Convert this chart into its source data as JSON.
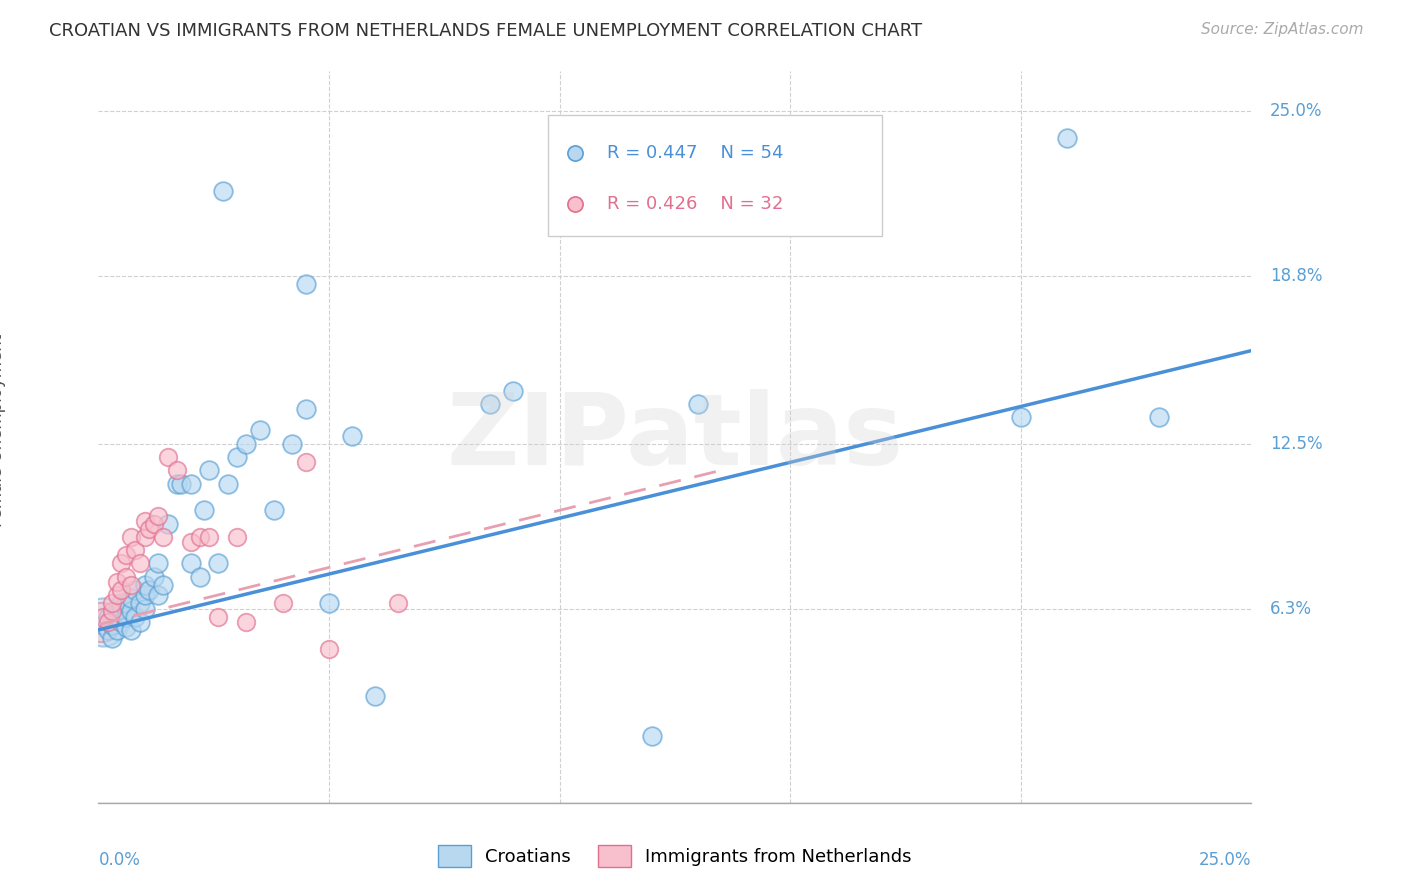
{
  "title": "CROATIAN VS IMMIGRANTS FROM NETHERLANDS FEMALE UNEMPLOYMENT CORRELATION CHART",
  "source": "Source: ZipAtlas.com",
  "ylabel": "Female Unemployment",
  "ytick_labels": [
    "6.3%",
    "12.5%",
    "18.8%",
    "25.0%"
  ],
  "ytick_values": [
    0.063,
    0.125,
    0.188,
    0.25
  ],
  "xlim": [
    0.0,
    0.25
  ],
  "ylim": [
    -0.01,
    0.265
  ],
  "blue_color": "#b8d8f0",
  "pink_color": "#f8bfcc",
  "blue_edge_color": "#5a9fd4",
  "pink_edge_color": "#e07090",
  "blue_line_color": "#4a90d9",
  "pink_line_color": "#e07090",
  "pink_dash_color": "#e8a0b0",
  "label_color": "#5a9fd4",
  "watermark": "ZIPatlas",
  "blue_line_x0": 0.0,
  "blue_line_y0": 0.055,
  "blue_line_x1": 0.25,
  "blue_line_y1": 0.16,
  "pink_line_x0": 0.0,
  "pink_line_y0": 0.057,
  "pink_line_x1": 0.135,
  "pink_line_y1": 0.115,
  "blue_scatter_x": [
    0.001,
    0.002,
    0.002,
    0.003,
    0.003,
    0.003,
    0.004,
    0.004,
    0.005,
    0.005,
    0.005,
    0.006,
    0.006,
    0.006,
    0.007,
    0.007,
    0.007,
    0.008,
    0.008,
    0.009,
    0.009,
    0.01,
    0.01,
    0.01,
    0.011,
    0.012,
    0.013,
    0.013,
    0.014,
    0.015,
    0.017,
    0.018,
    0.02,
    0.02,
    0.022,
    0.023,
    0.024,
    0.026,
    0.028,
    0.03,
    0.032,
    0.035,
    0.038,
    0.042,
    0.045,
    0.05,
    0.055,
    0.06,
    0.085,
    0.09,
    0.13,
    0.2,
    0.21,
    0.23
  ],
  "blue_scatter_y": [
    0.057,
    0.055,
    0.06,
    0.052,
    0.057,
    0.06,
    0.055,
    0.062,
    0.058,
    0.063,
    0.065,
    0.056,
    0.06,
    0.065,
    0.055,
    0.062,
    0.067,
    0.06,
    0.07,
    0.058,
    0.065,
    0.063,
    0.068,
    0.072,
    0.07,
    0.075,
    0.068,
    0.08,
    0.072,
    0.095,
    0.11,
    0.11,
    0.08,
    0.11,
    0.075,
    0.1,
    0.115,
    0.08,
    0.11,
    0.12,
    0.125,
    0.13,
    0.1,
    0.125,
    0.138,
    0.065,
    0.128,
    0.03,
    0.14,
    0.145,
    0.14,
    0.135,
    0.24,
    0.135
  ],
  "pink_scatter_x": [
    0.001,
    0.002,
    0.003,
    0.003,
    0.004,
    0.004,
    0.005,
    0.005,
    0.006,
    0.006,
    0.007,
    0.007,
    0.008,
    0.009,
    0.01,
    0.01,
    0.011,
    0.012,
    0.013,
    0.014,
    0.015,
    0.017,
    0.02,
    0.022,
    0.024,
    0.026,
    0.03,
    0.032,
    0.04,
    0.045,
    0.05,
    0.065
  ],
  "pink_scatter_y": [
    0.06,
    0.058,
    0.062,
    0.065,
    0.068,
    0.073,
    0.07,
    0.08,
    0.075,
    0.083,
    0.072,
    0.09,
    0.085,
    0.08,
    0.09,
    0.096,
    0.093,
    0.095,
    0.098,
    0.09,
    0.12,
    0.115,
    0.088,
    0.09,
    0.09,
    0.06,
    0.09,
    0.058,
    0.065,
    0.118,
    0.048,
    0.065
  ]
}
